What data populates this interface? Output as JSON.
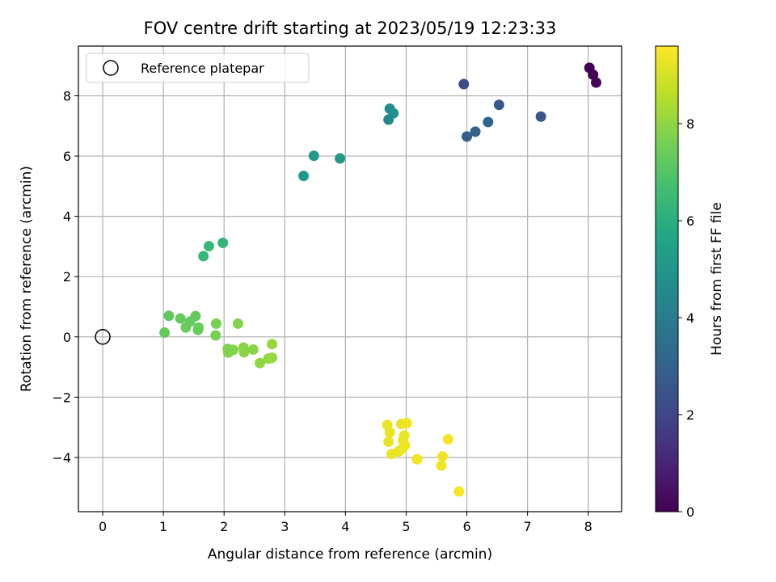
{
  "chart_data": {
    "type": "scatter",
    "title": "FOV centre drift starting at 2023/05/19 12:23:33",
    "xlabel": "Angular distance from reference (arcmin)",
    "ylabel": "Rotation from reference (arcmin)",
    "xlim": [
      -0.4,
      8.55
    ],
    "ylim": [
      -5.8,
      9.65
    ],
    "xticks": [
      0,
      1,
      2,
      3,
      4,
      5,
      6,
      7,
      8
    ],
    "yticks": [
      -4,
      -2,
      0,
      2,
      4,
      6,
      8
    ],
    "ytick_labels": [
      "−4",
      "−2",
      "0",
      "2",
      "4",
      "6",
      "8"
    ],
    "grid": true,
    "legend": {
      "placement": "upper-left",
      "entries": [
        "Reference platepar"
      ]
    },
    "reference_point": {
      "x": 0,
      "y": 0
    },
    "colorbar": {
      "label": "Hours from first FF file",
      "colormap": "viridis",
      "range": [
        0,
        9.6
      ],
      "ticks": [
        0,
        2,
        4,
        6,
        8
      ]
    },
    "points": [
      {
        "x": 8.02,
        "y": 8.93,
        "h": 0.0
      },
      {
        "x": 8.08,
        "y": 8.7,
        "h": 0.1
      },
      {
        "x": 8.13,
        "y": 8.44,
        "h": 0.2
      },
      {
        "x": 5.95,
        "y": 8.39,
        "h": 2.2
      },
      {
        "x": 6.53,
        "y": 7.7,
        "h": 2.6
      },
      {
        "x": 7.22,
        "y": 7.31,
        "h": 2.6
      },
      {
        "x": 6.35,
        "y": 7.13,
        "h": 3.1
      },
      {
        "x": 6.14,
        "y": 6.81,
        "h": 3.0
      },
      {
        "x": 6.0,
        "y": 6.65,
        "h": 2.9
      },
      {
        "x": 4.73,
        "y": 7.57,
        "h": 4.7
      },
      {
        "x": 4.79,
        "y": 7.42,
        "h": 4.8
      },
      {
        "x": 4.71,
        "y": 7.21,
        "h": 4.5
      },
      {
        "x": 3.48,
        "y": 6.01,
        "h": 5.1
      },
      {
        "x": 3.91,
        "y": 5.92,
        "h": 5.1
      },
      {
        "x": 3.31,
        "y": 5.34,
        "h": 5.2
      },
      {
        "x": 1.98,
        "y": 3.12,
        "h": 6.3
      },
      {
        "x": 1.75,
        "y": 3.01,
        "h": 6.4
      },
      {
        "x": 1.66,
        "y": 2.68,
        "h": 6.4
      },
      {
        "x": 1.09,
        "y": 0.7,
        "h": 7.2
      },
      {
        "x": 1.02,
        "y": 0.14,
        "h": 7.3
      },
      {
        "x": 1.28,
        "y": 0.61,
        "h": 7.3
      },
      {
        "x": 1.53,
        "y": 0.69,
        "h": 7.3
      },
      {
        "x": 1.44,
        "y": 0.51,
        "h": 7.3
      },
      {
        "x": 1.37,
        "y": 0.31,
        "h": 7.4
      },
      {
        "x": 1.58,
        "y": 0.31,
        "h": 7.4
      },
      {
        "x": 1.57,
        "y": 0.23,
        "h": 7.4
      },
      {
        "x": 1.87,
        "y": 0.44,
        "h": 7.6
      },
      {
        "x": 1.86,
        "y": 0.05,
        "h": 7.6
      },
      {
        "x": 2.23,
        "y": 0.44,
        "h": 7.8
      },
      {
        "x": 2.06,
        "y": -0.4,
        "h": 7.8
      },
      {
        "x": 2.1,
        "y": -0.46,
        "h": 7.8
      },
      {
        "x": 2.15,
        "y": -0.43,
        "h": 7.8
      },
      {
        "x": 2.07,
        "y": -0.52,
        "h": 7.8
      },
      {
        "x": 2.32,
        "y": -0.35,
        "h": 7.9
      },
      {
        "x": 2.33,
        "y": -0.51,
        "h": 7.9
      },
      {
        "x": 2.48,
        "y": -0.42,
        "h": 7.9
      },
      {
        "x": 2.59,
        "y": -0.87,
        "h": 8.0
      },
      {
        "x": 2.73,
        "y": -0.72,
        "h": 8.0
      },
      {
        "x": 2.79,
        "y": -0.69,
        "h": 8.1
      },
      {
        "x": 2.79,
        "y": -0.24,
        "h": 8.1
      },
      {
        "x": 4.69,
        "y": -2.92,
        "h": 9.3
      },
      {
        "x": 4.73,
        "y": -3.17,
        "h": 9.3
      },
      {
        "x": 4.71,
        "y": -3.48,
        "h": 9.3
      },
      {
        "x": 4.76,
        "y": -3.89,
        "h": 9.3
      },
      {
        "x": 4.92,
        "y": -2.89,
        "h": 9.3
      },
      {
        "x": 5.01,
        "y": -2.86,
        "h": 9.4
      },
      {
        "x": 4.97,
        "y": -3.27,
        "h": 9.3
      },
      {
        "x": 4.95,
        "y": -3.43,
        "h": 9.3
      },
      {
        "x": 4.98,
        "y": -3.6,
        "h": 9.4
      },
      {
        "x": 4.88,
        "y": -3.8,
        "h": 9.3
      },
      {
        "x": 4.93,
        "y": -3.72,
        "h": 9.4
      },
      {
        "x": 5.18,
        "y": -4.06,
        "h": 9.4
      },
      {
        "x": 5.6,
        "y": -3.97,
        "h": 9.4
      },
      {
        "x": 5.58,
        "y": -4.27,
        "h": 9.4
      },
      {
        "x": 5.69,
        "y": -3.4,
        "h": 9.5
      },
      {
        "x": 5.87,
        "y": -5.13,
        "h": 9.5
      }
    ]
  }
}
